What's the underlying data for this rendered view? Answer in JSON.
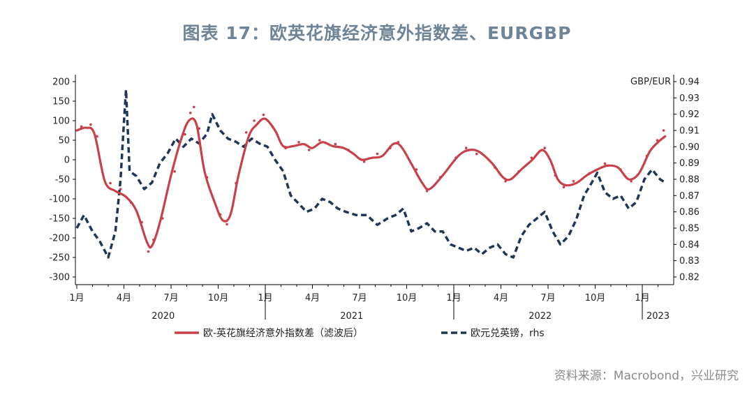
{
  "title": "图表 17：欧英花旗经济意外指数差、EURGBP",
  "source": "资料来源：Macrobond，兴业研究",
  "colors": {
    "title": "#6f8497",
    "red": "#c8414a",
    "navy": "#1f3657",
    "axis": "#000000"
  },
  "chart_data": {
    "type": "line",
    "x_start": "2020-01",
    "x_end": "2023-02",
    "month_ticks": [
      "1月",
      "4月",
      "7月",
      "10月",
      "1月",
      "4月",
      "7月",
      "10月",
      "1月",
      "4月",
      "7月",
      "10月",
      "1月"
    ],
    "year_labels": [
      "2020",
      "2021",
      "2022",
      "2023"
    ],
    "y_left": {
      "min": -300,
      "max": 200,
      "ticks": [
        "200",
        "150",
        "100",
        "50",
        "0",
        "-50",
        "-100",
        "-150",
        "-200",
        "-250",
        "-300"
      ]
    },
    "y_right": {
      "label": "GBP/EUR",
      "min": 0.82,
      "max": 0.94,
      "ticks": [
        "0.94",
        "0.93",
        "0.92",
        "0.91",
        "0.90",
        "0.89",
        "0.88",
        "0.87",
        "0.86",
        "0.85",
        "0.84",
        "0.83",
        "0.82"
      ]
    },
    "series": [
      {
        "name": "欧-英花旗经济意外指数差（滤波后）",
        "axis": "left",
        "style": "solid",
        "points": [
          [
            "2020-01-01",
            75
          ],
          [
            "2020-01-20",
            82
          ],
          [
            "2020-02-05",
            65
          ],
          [
            "2020-02-25",
            -55
          ],
          [
            "2020-03-15",
            -80
          ],
          [
            "2020-04-05",
            -95
          ],
          [
            "2020-04-25",
            -130
          ],
          [
            "2020-05-15",
            -210
          ],
          [
            "2020-05-25",
            -220
          ],
          [
            "2020-06-10",
            -160
          ],
          [
            "2020-07-01",
            -40
          ],
          [
            "2020-07-20",
            50
          ],
          [
            "2020-08-05",
            100
          ],
          [
            "2020-08-20",
            90
          ],
          [
            "2020-09-05",
            -30
          ],
          [
            "2020-09-25",
            -110
          ],
          [
            "2020-10-10",
            -155
          ],
          [
            "2020-10-25",
            -140
          ],
          [
            "2020-11-10",
            -40
          ],
          [
            "2020-11-30",
            60
          ],
          [
            "2020-12-15",
            90
          ],
          [
            "2020-12-31",
            105
          ],
          [
            "2021-01-20",
            75
          ],
          [
            "2021-02-05",
            35
          ],
          [
            "2021-02-25",
            35
          ],
          [
            "2021-03-15",
            40
          ],
          [
            "2021-03-31",
            30
          ],
          [
            "2021-04-20",
            45
          ],
          [
            "2021-05-10",
            35
          ],
          [
            "2021-06-01",
            30
          ],
          [
            "2021-06-20",
            15
          ],
          [
            "2021-07-05",
            0
          ],
          [
            "2021-07-25",
            5
          ],
          [
            "2021-08-15",
            10
          ],
          [
            "2021-09-05",
            40
          ],
          [
            "2021-09-20",
            35
          ],
          [
            "2021-10-10",
            -10
          ],
          [
            "2021-11-01",
            -60
          ],
          [
            "2021-11-15",
            -75
          ],
          [
            "2021-12-10",
            -40
          ],
          [
            "2022-01-10",
            10
          ],
          [
            "2022-01-31",
            25
          ],
          [
            "2022-02-20",
            20
          ],
          [
            "2022-03-15",
            -10
          ],
          [
            "2022-04-05",
            -45
          ],
          [
            "2022-04-20",
            -50
          ],
          [
            "2022-05-10",
            -25
          ],
          [
            "2022-06-01",
            0
          ],
          [
            "2022-06-20",
            25
          ],
          [
            "2022-07-05",
            0
          ],
          [
            "2022-07-20",
            -50
          ],
          [
            "2022-08-05",
            -65
          ],
          [
            "2022-08-25",
            -60
          ],
          [
            "2022-09-15",
            -40
          ],
          [
            "2022-10-05",
            -25
          ],
          [
            "2022-10-25",
            -15
          ],
          [
            "2022-11-15",
            -20
          ],
          [
            "2022-12-05",
            -50
          ],
          [
            "2022-12-25",
            -35
          ],
          [
            "2023-01-15",
            20
          ],
          [
            "2023-02-01",
            45
          ],
          [
            "2023-02-15",
            60
          ]
        ]
      },
      {
        "name": "欧元兑英镑，rhs",
        "axis": "right",
        "style": "dashed",
        "points": [
          [
            "2020-01-01",
            0.85
          ],
          [
            "2020-01-15",
            0.858
          ],
          [
            "2020-02-01",
            0.848
          ],
          [
            "2020-02-15",
            0.842
          ],
          [
            "2020-03-01",
            0.832
          ],
          [
            "2020-03-15",
            0.848
          ],
          [
            "2020-03-25",
            0.88
          ],
          [
            "2020-04-01",
            0.915
          ],
          [
            "2020-04-05",
            0.935
          ],
          [
            "2020-04-12",
            0.885
          ],
          [
            "2020-04-25",
            0.882
          ],
          [
            "2020-05-10",
            0.874
          ],
          [
            "2020-05-25",
            0.878
          ],
          [
            "2020-06-10",
            0.89
          ],
          [
            "2020-06-25",
            0.896
          ],
          [
            "2020-07-10",
            0.905
          ],
          [
            "2020-07-25",
            0.9
          ],
          [
            "2020-08-10",
            0.905
          ],
          [
            "2020-08-25",
            0.902
          ],
          [
            "2020-09-10",
            0.908
          ],
          [
            "2020-09-20",
            0.92
          ],
          [
            "2020-10-05",
            0.91
          ],
          [
            "2020-10-20",
            0.905
          ],
          [
            "2020-11-05",
            0.903
          ],
          [
            "2020-11-20",
            0.9
          ],
          [
            "2020-12-05",
            0.905
          ],
          [
            "2020-12-20",
            0.902
          ],
          [
            "2021-01-05",
            0.9
          ],
          [
            "2021-01-20",
            0.892
          ],
          [
            "2021-02-05",
            0.885
          ],
          [
            "2021-02-20",
            0.87
          ],
          [
            "2021-03-05",
            0.865
          ],
          [
            "2021-03-20",
            0.86
          ],
          [
            "2021-04-05",
            0.862
          ],
          [
            "2021-04-20",
            0.868
          ],
          [
            "2021-05-05",
            0.866
          ],
          [
            "2021-05-20",
            0.862
          ],
          [
            "2021-06-05",
            0.86
          ],
          [
            "2021-06-25",
            0.858
          ],
          [
            "2021-07-15",
            0.858
          ],
          [
            "2021-08-05",
            0.852
          ],
          [
            "2021-08-25",
            0.856
          ],
          [
            "2021-09-10",
            0.858
          ],
          [
            "2021-09-25",
            0.862
          ],
          [
            "2021-10-10",
            0.848
          ],
          [
            "2021-10-25",
            0.85
          ],
          [
            "2021-11-10",
            0.853
          ],
          [
            "2021-11-25",
            0.848
          ],
          [
            "2021-12-10",
            0.848
          ],
          [
            "2021-12-25",
            0.84
          ],
          [
            "2022-01-10",
            0.838
          ],
          [
            "2022-01-25",
            0.836
          ],
          [
            "2022-02-10",
            0.838
          ],
          [
            "2022-02-25",
            0.834
          ],
          [
            "2022-03-10",
            0.838
          ],
          [
            "2022-03-25",
            0.84
          ],
          [
            "2022-04-10",
            0.834
          ],
          [
            "2022-04-25",
            0.832
          ],
          [
            "2022-05-10",
            0.845
          ],
          [
            "2022-05-25",
            0.852
          ],
          [
            "2022-06-10",
            0.856
          ],
          [
            "2022-06-25",
            0.86
          ],
          [
            "2022-07-10",
            0.848
          ],
          [
            "2022-07-25",
            0.84
          ],
          [
            "2022-08-10",
            0.845
          ],
          [
            "2022-08-25",
            0.855
          ],
          [
            "2022-09-10",
            0.87
          ],
          [
            "2022-09-25",
            0.878
          ],
          [
            "2022-10-05",
            0.884
          ],
          [
            "2022-10-20",
            0.872
          ],
          [
            "2022-11-05",
            0.868
          ],
          [
            "2022-11-20",
            0.87
          ],
          [
            "2022-12-05",
            0.862
          ],
          [
            "2022-12-20",
            0.866
          ],
          [
            "2023-01-05",
            0.88
          ],
          [
            "2023-01-20",
            0.886
          ],
          [
            "2023-02-05",
            0.88
          ],
          [
            "2023-02-15",
            0.878
          ]
        ]
      }
    ],
    "scatter": [
      [
        "2020-01-10",
        85
      ],
      [
        "2020-01-28",
        90
      ],
      [
        "2020-02-10",
        60
      ],
      [
        "2020-03-05",
        -60
      ],
      [
        "2020-03-25",
        -75
      ],
      [
        "2020-04-15",
        -110
      ],
      [
        "2020-05-05",
        -160
      ],
      [
        "2020-05-18",
        -235
      ],
      [
        "2020-05-28",
        -205
      ],
      [
        "2020-06-15",
        -150
      ],
      [
        "2020-07-08",
        -30
      ],
      [
        "2020-07-28",
        65
      ],
      [
        "2020-08-08",
        120
      ],
      [
        "2020-08-15",
        135
      ],
      [
        "2020-08-25",
        80
      ],
      [
        "2020-09-10",
        -45
      ],
      [
        "2020-10-05",
        -140
      ],
      [
        "2020-10-18",
        -165
      ],
      [
        "2020-11-05",
        -60
      ],
      [
        "2020-11-25",
        70
      ],
      [
        "2020-12-10",
        100
      ],
      [
        "2020-12-28",
        115
      ],
      [
        "2021-01-15",
        85
      ],
      [
        "2021-02-10",
        30
      ],
      [
        "2021-03-05",
        45
      ],
      [
        "2021-03-25",
        25
      ],
      [
        "2021-04-15",
        50
      ],
      [
        "2021-05-15",
        40
      ],
      [
        "2021-06-10",
        25
      ],
      [
        "2021-07-10",
        -5
      ],
      [
        "2021-08-05",
        15
      ],
      [
        "2021-08-30",
        30
      ],
      [
        "2021-09-15",
        45
      ],
      [
        "2021-10-20",
        -25
      ],
      [
        "2021-11-10",
        -80
      ],
      [
        "2021-12-05",
        -45
      ],
      [
        "2022-01-05",
        5
      ],
      [
        "2022-01-25",
        30
      ],
      [
        "2022-02-15",
        15
      ],
      [
        "2022-03-20",
        -20
      ],
      [
        "2022-04-10",
        -55
      ],
      [
        "2022-05-05",
        -30
      ],
      [
        "2022-05-30",
        5
      ],
      [
        "2022-06-25",
        30
      ],
      [
        "2022-07-15",
        -40
      ],
      [
        "2022-08-01",
        -70
      ],
      [
        "2022-08-20",
        -55
      ],
      [
        "2022-09-20",
        -35
      ],
      [
        "2022-10-20",
        -10
      ],
      [
        "2022-11-20",
        -25
      ],
      [
        "2022-12-10",
        -55
      ],
      [
        "2023-01-10",
        10
      ],
      [
        "2023-01-30",
        50
      ],
      [
        "2023-02-12",
        75
      ]
    ]
  }
}
